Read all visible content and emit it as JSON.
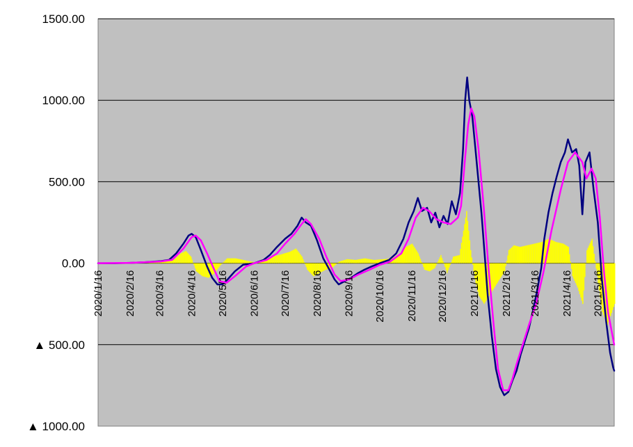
{
  "chart_data": {
    "type": "line",
    "title": "",
    "xlabel": "",
    "ylabel": "",
    "ylim": [
      -1000,
      1500
    ],
    "grid": true,
    "legend": "none",
    "y_ticks": [
      {
        "value": 1500,
        "label": "1500.00"
      },
      {
        "value": 1000,
        "label": "1000.00"
      },
      {
        "value": 500,
        "label": "500.00"
      },
      {
        "value": 0,
        "label": "0.00"
      },
      {
        "value": -500,
        "label": "▲ 500.00"
      },
      {
        "value": -1000,
        "label": "▲ 1000.00"
      }
    ],
    "x_range": [
      "2020/1/16",
      "2021/6/1"
    ],
    "x_tick_labels": [
      "2020/1/16",
      "2020/2/16",
      "2020/3/16",
      "2020/4/16",
      "2020/5/16",
      "2020/6/16",
      "2020/7/16",
      "2020/8/16",
      "2020/9/16",
      "2020/10/16",
      "2020/11/16",
      "2020/12/16",
      "2021/1/16",
      "2021/2/16",
      "2021/3/16",
      "2021/4/16",
      "2021/5/16"
    ],
    "colors": {
      "plot_bg": "#c0c0c0",
      "grid": "#000000",
      "navy_line": "#000080",
      "magenta_line": "#ff00ff",
      "bars": "#ffff00"
    },
    "series": [
      {
        "type": "line",
        "color": "#000080",
        "points": [
          [
            "2020/1/16",
            0
          ],
          [
            "2020/2/1",
            0
          ],
          [
            "2020/2/16",
            2
          ],
          [
            "2020/3/1",
            6
          ],
          [
            "2020/3/16",
            12
          ],
          [
            "2020/3/25",
            20
          ],
          [
            "2020/4/1",
            60
          ],
          [
            "2020/4/8",
            120
          ],
          [
            "2020/4/13",
            170
          ],
          [
            "2020/4/16",
            180
          ],
          [
            "2020/4/20",
            160
          ],
          [
            "2020/4/25",
            80
          ],
          [
            "2020/5/1",
            -20
          ],
          [
            "2020/5/6",
            -90
          ],
          [
            "2020/5/11",
            -130
          ],
          [
            "2020/5/16",
            -130
          ],
          [
            "2020/5/21",
            -100
          ],
          [
            "2020/5/28",
            -50
          ],
          [
            "2020/6/5",
            -10
          ],
          [
            "2020/6/16",
            0
          ],
          [
            "2020/6/25",
            20
          ],
          [
            "2020/7/1",
            50
          ],
          [
            "2020/7/8",
            100
          ],
          [
            "2020/7/16",
            150
          ],
          [
            "2020/7/22",
            180
          ],
          [
            "2020/7/28",
            230
          ],
          [
            "2020/8/1",
            280
          ],
          [
            "2020/8/5",
            250
          ],
          [
            "2020/8/10",
            230
          ],
          [
            "2020/8/16",
            140
          ],
          [
            "2020/8/22",
            30
          ],
          [
            "2020/8/28",
            -40
          ],
          [
            "2020/9/2",
            -100
          ],
          [
            "2020/9/6",
            -130
          ],
          [
            "2020/9/12",
            -110
          ],
          [
            "2020/9/18",
            -90
          ],
          [
            "2020/9/25",
            -60
          ],
          [
            "2020/10/1",
            -40
          ],
          [
            "2020/10/8",
            -20
          ],
          [
            "2020/10/16",
            0
          ],
          [
            "2020/10/25",
            20
          ],
          [
            "2020/11/1",
            60
          ],
          [
            "2020/11/8",
            150
          ],
          [
            "2020/11/13",
            250
          ],
          [
            "2020/11/18",
            320
          ],
          [
            "2020/11/22",
            400
          ],
          [
            "2020/11/26",
            320
          ],
          [
            "2020/12/1",
            340
          ],
          [
            "2020/12/5",
            250
          ],
          [
            "2020/12/9",
            310
          ],
          [
            "2020/12/13",
            220
          ],
          [
            "2020/12/17",
            290
          ],
          [
            "2020/12/21",
            240
          ],
          [
            "2020/12/25",
            380
          ],
          [
            "2020/12/29",
            300
          ],
          [
            "2021/1/2",
            430
          ],
          [
            "2021/1/5",
            700
          ],
          [
            "2021/1/7",
            1000
          ],
          [
            "2021/1/9",
            1140
          ],
          [
            "2021/1/11",
            1000
          ],
          [
            "2021/1/14",
            900
          ],
          [
            "2021/1/17",
            700
          ],
          [
            "2021/1/20",
            500
          ],
          [
            "2021/1/23",
            300
          ],
          [
            "2021/1/26",
            50
          ],
          [
            "2021/1/29",
            -200
          ],
          [
            "2021/2/2",
            -450
          ],
          [
            "2021/2/6",
            -650
          ],
          [
            "2021/2/10",
            -760
          ],
          [
            "2021/2/14",
            -810
          ],
          [
            "2021/2/18",
            -790
          ],
          [
            "2021/2/22",
            -720
          ],
          [
            "2021/2/26",
            -660
          ],
          [
            "2021/3/2",
            -560
          ],
          [
            "2021/3/6",
            -480
          ],
          [
            "2021/3/10",
            -400
          ],
          [
            "2021/3/14",
            -290
          ],
          [
            "2021/3/18",
            -170
          ],
          [
            "2021/3/22",
            -30
          ],
          [
            "2021/3/25",
            150
          ],
          [
            "2021/3/29",
            310
          ],
          [
            "2021/4/2",
            430
          ],
          [
            "2021/4/6",
            530
          ],
          [
            "2021/4/10",
            620
          ],
          [
            "2021/4/14",
            680
          ],
          [
            "2021/4/17",
            760
          ],
          [
            "2021/4/21",
            680
          ],
          [
            "2021/4/25",
            700
          ],
          [
            "2021/4/28",
            600
          ],
          [
            "2021/5/1",
            300
          ],
          [
            "2021/5/4",
            620
          ],
          [
            "2021/5/8",
            680
          ],
          [
            "2021/5/12",
            450
          ],
          [
            "2021/5/16",
            250
          ],
          [
            "2021/5/20",
            -100
          ],
          [
            "2021/5/24",
            -350
          ],
          [
            "2021/5/28",
            -550
          ],
          [
            "2021/5/31",
            -640
          ],
          [
            "2021/6/1",
            -660
          ]
        ]
      },
      {
        "type": "line",
        "color": "#ff00ff",
        "points": [
          [
            "2020/1/16",
            0
          ],
          [
            "2020/2/16",
            2
          ],
          [
            "2020/3/16",
            10
          ],
          [
            "2020/3/28",
            20
          ],
          [
            "2020/4/8",
            90
          ],
          [
            "2020/4/16",
            160
          ],
          [
            "2020/4/20",
            170
          ],
          [
            "2020/4/25",
            140
          ],
          [
            "2020/5/1",
            60
          ],
          [
            "2020/5/8",
            -40
          ],
          [
            "2020/5/13",
            -110
          ],
          [
            "2020/5/20",
            -120
          ],
          [
            "2020/5/28",
            -80
          ],
          [
            "2020/6/8",
            -20
          ],
          [
            "2020/6/16",
            0
          ],
          [
            "2020/6/28",
            20
          ],
          [
            "2020/7/8",
            60
          ],
          [
            "2020/7/16",
            120
          ],
          [
            "2020/7/25",
            180
          ],
          [
            "2020/8/1",
            240
          ],
          [
            "2020/8/5",
            270
          ],
          [
            "2020/8/10",
            240
          ],
          [
            "2020/8/18",
            150
          ],
          [
            "2020/8/25",
            40
          ],
          [
            "2020/9/2",
            -70
          ],
          [
            "2020/9/8",
            -110
          ],
          [
            "2020/9/16",
            -100
          ],
          [
            "2020/9/25",
            -70
          ],
          [
            "2020/10/6",
            -40
          ],
          [
            "2020/10/16",
            -10
          ],
          [
            "2020/10/26",
            10
          ],
          [
            "2020/11/6",
            60
          ],
          [
            "2020/11/13",
            150
          ],
          [
            "2020/11/20",
            280
          ],
          [
            "2020/11/27",
            340
          ],
          [
            "2020/12/3",
            320
          ],
          [
            "2020/12/10",
            270
          ],
          [
            "2020/12/17",
            250
          ],
          [
            "2020/12/24",
            240
          ],
          [
            "2020/12/31",
            280
          ],
          [
            "2021/1/3",
            350
          ],
          [
            "2021/1/7",
            650
          ],
          [
            "2021/1/10",
            850
          ],
          [
            "2021/1/13",
            950
          ],
          [
            "2021/1/16",
            900
          ],
          [
            "2021/1/20",
            700
          ],
          [
            "2021/1/25",
            350
          ],
          [
            "2021/1/30",
            -50
          ],
          [
            "2021/2/4",
            -400
          ],
          [
            "2021/2/8",
            -650
          ],
          [
            "2021/2/13",
            -780
          ],
          [
            "2021/2/18",
            -780
          ],
          [
            "2021/2/22",
            -710
          ],
          [
            "2021/2/26",
            -620
          ],
          [
            "2021/3/4",
            -500
          ],
          [
            "2021/3/10",
            -380
          ],
          [
            "2021/3/17",
            -250
          ],
          [
            "2021/3/24",
            -60
          ],
          [
            "2021/4/1",
            200
          ],
          [
            "2021/4/10",
            450
          ],
          [
            "2021/4/17",
            620
          ],
          [
            "2021/4/24",
            680
          ],
          [
            "2021/5/1",
            620
          ],
          [
            "2021/5/5",
            520
          ],
          [
            "2021/5/10",
            580
          ],
          [
            "2021/5/14",
            520
          ],
          [
            "2021/5/18",
            280
          ],
          [
            "2021/5/22",
            -50
          ],
          [
            "2021/5/26",
            -300
          ],
          [
            "2021/6/1",
            -500
          ]
        ]
      },
      {
        "type": "bar",
        "color": "#ffff00",
        "points": [
          [
            "2020/1/16",
            0
          ],
          [
            "2020/2/1",
            0
          ],
          [
            "2020/3/1",
            2
          ],
          [
            "2020/3/20",
            8
          ],
          [
            "2020/3/30",
            25
          ],
          [
            "2020/4/5",
            60
          ],
          [
            "2020/4/10",
            75
          ],
          [
            "2020/4/15",
            40
          ],
          [
            "2020/4/20",
            -50
          ],
          [
            "2020/4/26",
            -80
          ],
          [
            "2020/5/2",
            -90
          ],
          [
            "2020/5/8",
            -60
          ],
          [
            "2020/5/14",
            -10
          ],
          [
            "2020/5/20",
            30
          ],
          [
            "2020/5/28",
            30
          ],
          [
            "2020/6/5",
            20
          ],
          [
            "2020/6/16",
            5
          ],
          [
            "2020/6/24",
            20
          ],
          [
            "2020/7/3",
            40
          ],
          [
            "2020/7/12",
            55
          ],
          [
            "2020/7/20",
            70
          ],
          [
            "2020/7/26",
            90
          ],
          [
            "2020/8/1",
            40
          ],
          [
            "2020/8/6",
            -40
          ],
          [
            "2020/8/12",
            -80
          ],
          [
            "2020/8/18",
            -60
          ],
          [
            "2020/8/24",
            -40
          ],
          [
            "2020/8/30",
            -30
          ],
          [
            "2020/9/6",
            10
          ],
          [
            "2020/9/14",
            25
          ],
          [
            "2020/9/22",
            20
          ],
          [
            "2020/10/1",
            30
          ],
          [
            "2020/10/10",
            20
          ],
          [
            "2020/10/20",
            25
          ],
          [
            "2020/10/28",
            30
          ],
          [
            "2020/11/4",
            60
          ],
          [
            "2020/11/10",
            100
          ],
          [
            "2020/11/16",
            120
          ],
          [
            "2020/11/22",
            60
          ],
          [
            "2020/11/28",
            -40
          ],
          [
            "2020/12/3",
            -50
          ],
          [
            "2020/12/8",
            -30
          ],
          [
            "2020/12/14",
            50
          ],
          [
            "2020/12/20",
            -60
          ],
          [
            "2020/12/26",
            40
          ],
          [
            "2021/1/1",
            50
          ],
          [
            "2021/1/5",
            200
          ],
          [
            "2021/1/8",
            320
          ],
          [
            "2021/1/12",
            80
          ],
          [
            "2021/1/16",
            -100
          ],
          [
            "2021/1/20",
            -200
          ],
          [
            "2021/1/25",
            -250
          ],
          [
            "2021/1/30",
            -200
          ],
          [
            "2021/2/4",
            -150
          ],
          [
            "2021/2/9",
            -100
          ],
          [
            "2021/2/14",
            -50
          ],
          [
            "2021/2/18",
            80
          ],
          [
            "2021/2/23",
            110
          ],
          [
            "2021/3/1",
            100
          ],
          [
            "2021/3/8",
            110
          ],
          [
            "2021/3/15",
            120
          ],
          [
            "2021/3/22",
            130
          ],
          [
            "2021/3/29",
            150
          ],
          [
            "2021/4/5",
            130
          ],
          [
            "2021/4/12",
            120
          ],
          [
            "2021/4/17",
            100
          ],
          [
            "2021/4/21",
            -80
          ],
          [
            "2021/4/26",
            -150
          ],
          [
            "2021/5/1",
            -250
          ],
          [
            "2021/5/5",
            80
          ],
          [
            "2021/5/10",
            150
          ],
          [
            "2021/5/15",
            -80
          ],
          [
            "2021/5/20",
            -300
          ],
          [
            "2021/5/25",
            -380
          ],
          [
            "2021/6/1",
            -250
          ]
        ]
      }
    ]
  }
}
